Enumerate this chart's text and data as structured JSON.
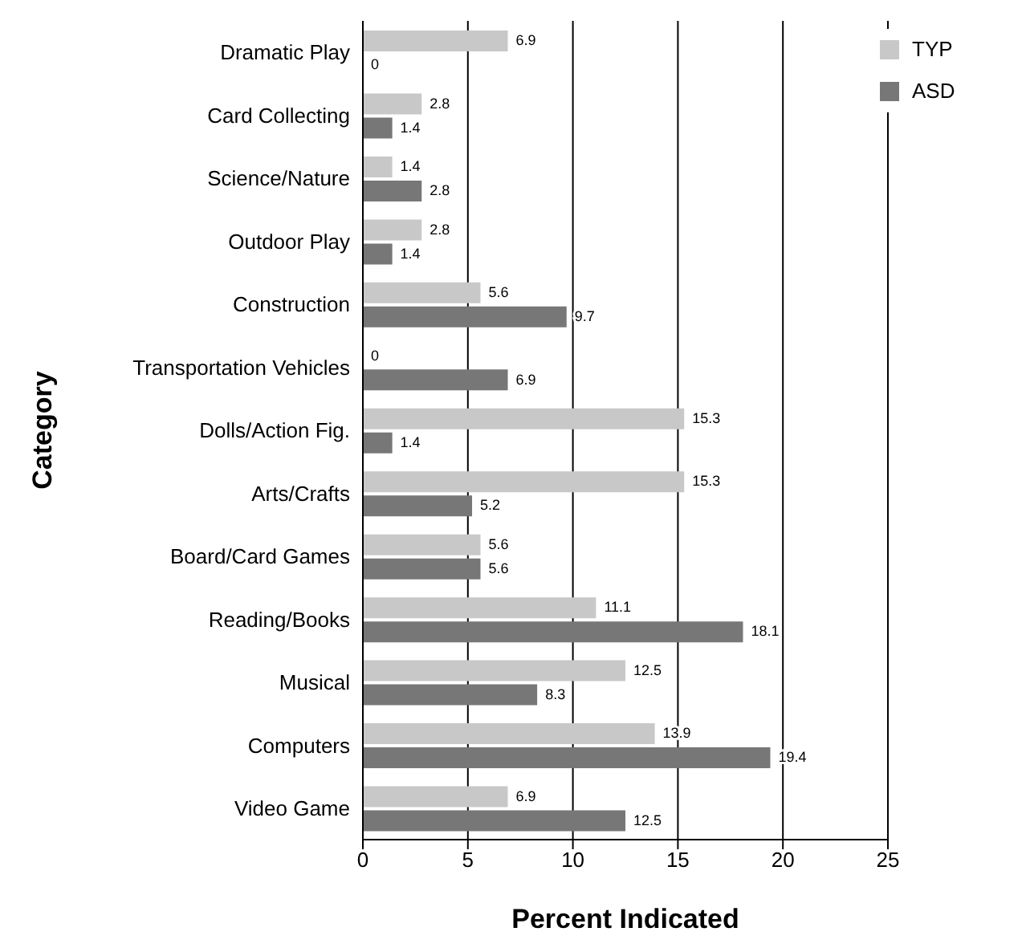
{
  "chart_data": {
    "type": "bar",
    "orientation": "horizontal",
    "xlabel": "Percent Indicated",
    "ylabel": "Category",
    "categories": [
      "Dramatic Play",
      "Card Collecting",
      "Science/Nature",
      "Outdoor Play",
      "Construction",
      "Transportation Vehicles",
      "Dolls/Action Fig.",
      "Arts/Crafts",
      "Board/Card Games",
      "Reading/Books",
      "Musical",
      "Computers",
      "Video Game"
    ],
    "series": [
      {
        "name": "TYP",
        "color": "#c8c8c8",
        "values": [
          6.9,
          2.8,
          1.4,
          2.8,
          5.6,
          0,
          15.3,
          15.3,
          5.6,
          11.1,
          12.5,
          13.9,
          6.9
        ]
      },
      {
        "name": "ASD",
        "color": "#777777",
        "values": [
          0,
          1.4,
          2.8,
          1.4,
          9.7,
          6.9,
          1.4,
          5.2,
          5.6,
          18.1,
          8.3,
          19.4,
          12.5
        ]
      }
    ],
    "xlim": [
      0,
      25
    ],
    "xticks": [
      0,
      5,
      10,
      15,
      20,
      25
    ],
    "grid": "x",
    "legend": "top right",
    "data_labels": true
  }
}
